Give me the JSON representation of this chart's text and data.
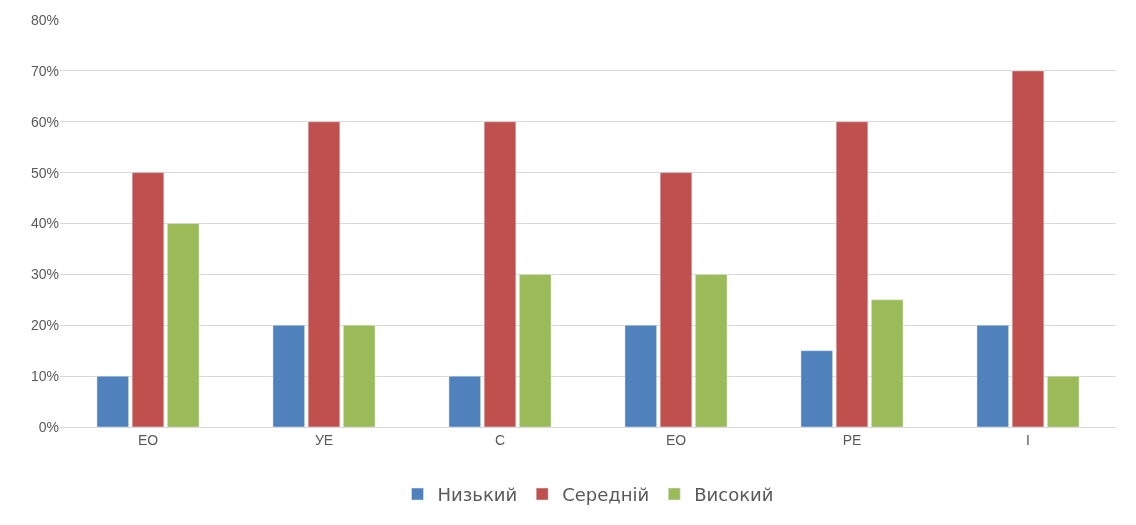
{
  "chart_data": {
    "type": "bar",
    "categories": [
      "ЕО",
      "УЕ",
      "С",
      "ЕО",
      "РЕ",
      "І"
    ],
    "series": [
      {
        "name": "Низький",
        "color": "#4f81bd",
        "values": [
          10,
          20,
          10,
          20,
          15,
          20
        ]
      },
      {
        "name": "Середній",
        "color": "#c0504d",
        "values": [
          50,
          60,
          60,
          50,
          60,
          70
        ]
      },
      {
        "name": "Високий",
        "color": "#9bbb59",
        "values": [
          40,
          20,
          30,
          30,
          25,
          10
        ]
      }
    ],
    "ylim": [
      0,
      80
    ],
    "yticks": [
      {
        "value": 0,
        "label": "0%"
      },
      {
        "value": 10,
        "label": "10%"
      },
      {
        "value": 20,
        "label": "20%"
      },
      {
        "value": 30,
        "label": "30%"
      },
      {
        "value": 40,
        "label": "40%"
      },
      {
        "value": 50,
        "label": "50%"
      },
      {
        "value": 60,
        "label": "60%"
      },
      {
        "value": 70,
        "label": "70%"
      },
      {
        "value": 80,
        "label": "80%"
      }
    ],
    "grid": "y",
    "legend": "bottom"
  }
}
